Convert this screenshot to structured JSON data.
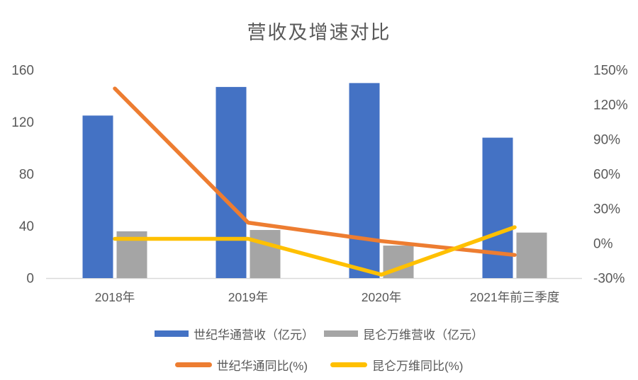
{
  "chart_data": {
    "type": "combo-bar-line",
    "title": "营收及增速对比",
    "categories": [
      "2018年",
      "2019年",
      "2020年",
      "2021年前三季度"
    ],
    "series": [
      {
        "name": "世纪华通营收（亿元）",
        "type": "bar",
        "axis": "left",
        "color_key": "blue",
        "values": [
          125,
          147,
          150,
          108
        ]
      },
      {
        "name": "昆仑万维营收（亿元）",
        "type": "bar",
        "axis": "left",
        "color_key": "gray",
        "values": [
          36,
          37,
          25,
          35
        ]
      },
      {
        "name": "世纪华通同比(%)",
        "type": "line",
        "axis": "right",
        "color_key": "orange",
        "values": [
          134,
          18,
          2,
          -10
        ]
      },
      {
        "name": "昆仑万维同比(%)",
        "type": "line",
        "axis": "right",
        "color_key": "yellow",
        "values": [
          4,
          4,
          -27,
          14
        ]
      }
    ],
    "left_axis": {
      "min": 0,
      "max": 160,
      "ticks": [
        "160",
        "120",
        "80",
        "40",
        "0"
      ]
    },
    "right_axis": {
      "min": -30,
      "max": 150,
      "ticks": [
        "150%",
        "120%",
        "90%",
        "60%",
        "30%",
        "0%",
        "-30%"
      ]
    },
    "grid": false,
    "legend_position": "bottom"
  },
  "colors": {
    "blue": "#4472C4",
    "gray": "#A5A5A5",
    "orange": "#ED7D31",
    "yellow": "#FFC000",
    "text": "#595959",
    "axis_line": "#D9D9D9",
    "background": "#FFFFFF"
  }
}
